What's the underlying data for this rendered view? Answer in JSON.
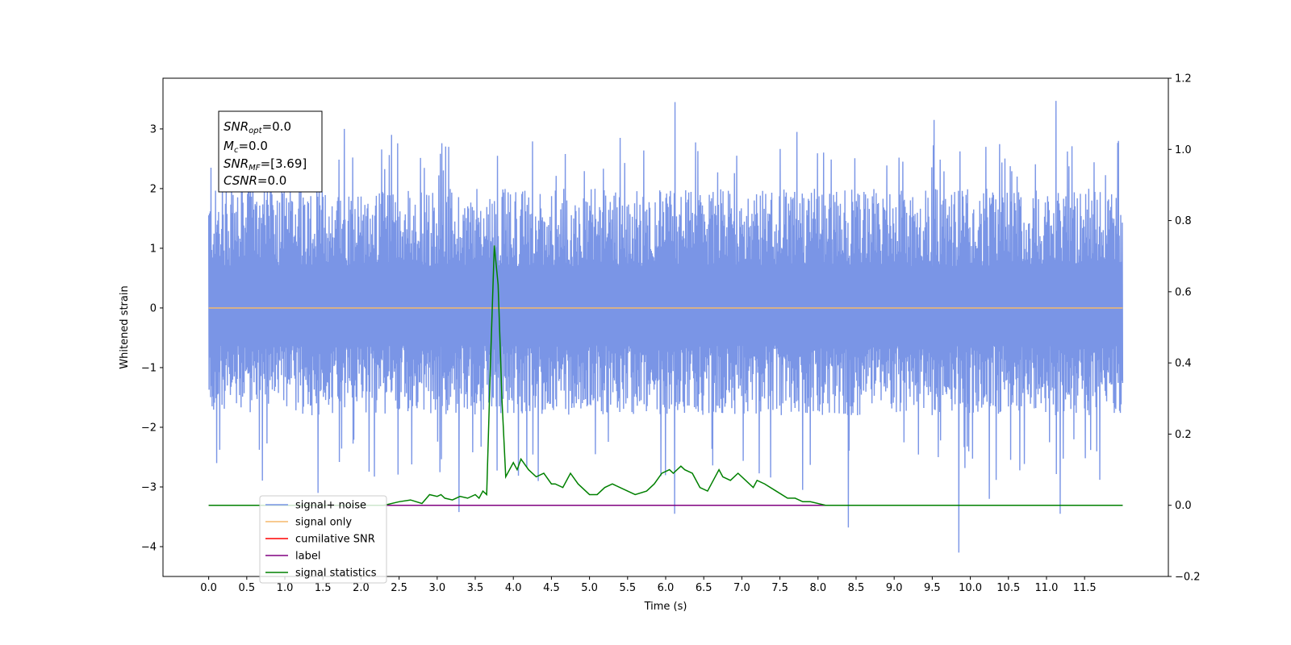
{
  "chart_data": {
    "type": "line",
    "xlabel": "Time (s)",
    "ylabel": "Whitened strain",
    "xlim": [
      -0.6,
      12.6
    ],
    "ylim": [
      -4.5,
      3.85
    ],
    "y2lim": [
      -0.2,
      1.2
    ],
    "x_ticks": [
      0.0,
      0.5,
      1.0,
      1.5,
      2.0,
      2.5,
      3.0,
      3.5,
      4.0,
      4.5,
      5.0,
      5.5,
      6.0,
      6.5,
      7.0,
      7.5,
      8.0,
      8.5,
      9.0,
      9.5,
      10.0,
      10.5,
      11.0,
      11.5
    ],
    "x_tick_labels": [
      "0.0",
      "0.5",
      "1.0",
      "1.5",
      "2.0",
      "2.5",
      "3.0",
      "3.5",
      "4.0",
      "4.5",
      "5.0",
      "5.5",
      "6.0",
      "6.5",
      "7.0",
      "7.5",
      "8.0",
      "8.5",
      "9.0",
      "9.5",
      "10.0",
      "10.5",
      "11.0",
      "11.5"
    ],
    "y_ticks": [
      -4,
      -3,
      -2,
      -1,
      0,
      1,
      2,
      3
    ],
    "y_tick_labels": [
      "−4",
      "−3",
      "−2",
      "−1",
      "0",
      "1",
      "2",
      "3"
    ],
    "y2_ticks": [
      -0.2,
      0.0,
      0.2,
      0.4,
      0.6,
      0.8,
      1.0,
      1.2
    ],
    "y2_tick_labels": [
      "−0.2",
      "0.0",
      "0.2",
      "0.4",
      "0.6",
      "0.8",
      "1.0",
      "1.2"
    ],
    "grid": false,
    "legend_position": "lower-left",
    "series": [
      {
        "name": "signal+ noise",
        "color": "#7a95e6",
        "axis": "left",
        "x_range": [
          0.0,
          12.0
        ],
        "typical_range": [
          -1.8,
          2.0
        ],
        "peaks": [
          [
            6.12,
            3.45
          ],
          [
            11.12,
            3.47
          ],
          [
            9.52,
            3.15
          ],
          [
            1.78,
            3.0
          ],
          [
            2.4,
            2.9
          ],
          [
            3.15,
            2.7
          ],
          [
            0.03,
            2.35
          ],
          [
            5.4,
            2.85
          ],
          [
            7.72,
            2.95
          ],
          [
            10.2,
            2.7
          ]
        ],
        "troughs": [
          [
            9.85,
            -4.1
          ],
          [
            8.4,
            -3.68
          ],
          [
            6.12,
            -3.45
          ],
          [
            11.18,
            -3.45
          ],
          [
            3.28,
            -3.42
          ],
          [
            10.25,
            -3.2
          ],
          [
            1.43,
            -3.1
          ],
          [
            0.1,
            -2.6
          ],
          [
            7.8,
            -3.05
          ],
          [
            4.32,
            -2.9
          ]
        ]
      },
      {
        "name": "signal only",
        "color": "#f5b96b",
        "axis": "left",
        "x": [
          0.0,
          12.0
        ],
        "y": [
          0.0,
          0.0
        ]
      },
      {
        "name": "cumilative SNR",
        "color": "#ff0000",
        "axis": "right",
        "x": [],
        "y": []
      },
      {
        "name": "label",
        "color": "#800080",
        "axis": "right",
        "x": [
          0.0,
          12.0
        ],
        "y": [
          0.0,
          0.0
        ]
      },
      {
        "name": "signal statistics",
        "color": "#008000",
        "axis": "right",
        "x": [
          0.0,
          2.3,
          2.5,
          2.65,
          2.8,
          2.9,
          3.0,
          3.05,
          3.1,
          3.2,
          3.3,
          3.4,
          3.5,
          3.55,
          3.6,
          3.65,
          3.7,
          3.75,
          3.8,
          3.85,
          3.9,
          3.95,
          4.0,
          4.05,
          4.1,
          4.2,
          4.3,
          4.4,
          4.5,
          4.55,
          4.65,
          4.75,
          4.85,
          5.0,
          5.1,
          5.2,
          5.3,
          5.5,
          5.6,
          5.75,
          5.85,
          5.95,
          6.05,
          6.1,
          6.15,
          6.2,
          6.25,
          6.35,
          6.45,
          6.55,
          6.7,
          6.75,
          6.85,
          6.95,
          7.05,
          7.15,
          7.2,
          7.3,
          7.45,
          7.6,
          7.7,
          7.8,
          7.9,
          8.1,
          8.5,
          12.0
        ],
        "y": [
          0.0,
          0.0,
          0.01,
          0.015,
          0.005,
          0.03,
          0.025,
          0.03,
          0.02,
          0.015,
          0.025,
          0.02,
          0.03,
          0.02,
          0.04,
          0.03,
          0.4,
          0.73,
          0.62,
          0.3,
          0.08,
          0.1,
          0.12,
          0.1,
          0.13,
          0.1,
          0.08,
          0.09,
          0.06,
          0.06,
          0.05,
          0.09,
          0.06,
          0.03,
          0.03,
          0.05,
          0.06,
          0.04,
          0.03,
          0.04,
          0.06,
          0.09,
          0.1,
          0.09,
          0.1,
          0.11,
          0.1,
          0.09,
          0.05,
          0.04,
          0.1,
          0.08,
          0.07,
          0.09,
          0.07,
          0.05,
          0.07,
          0.06,
          0.04,
          0.02,
          0.02,
          0.01,
          0.01,
          0.0,
          0.0,
          0.0
        ]
      }
    ],
    "annotation_box": {
      "lines": [
        "SNR_opt=0.0",
        "M_c=0.0",
        "SNR_MF=[3.69]",
        "CSNR=0.0"
      ],
      "position": "top-left"
    }
  },
  "info": {
    "line1_main": "SNR",
    "line1_sub": "opt",
    "line1_value": "=0.0",
    "line2_main": "M",
    "line2_sub": "c",
    "line2_value": "=0.0",
    "line3_main": "SNR",
    "line3_sub": "MF",
    "line3_value": "=[3.69]",
    "line4_main": "CSNR",
    "line4_value": "=0.0"
  }
}
